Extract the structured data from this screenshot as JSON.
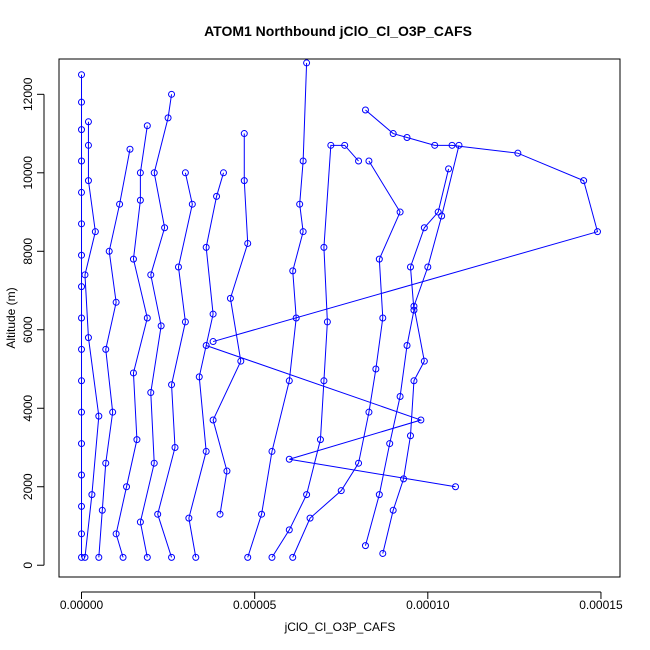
{
  "chart_data": {
    "type": "scatter",
    "title": "ATOM1 Northbound jClO_Cl_O3P_CAFS",
    "xlabel": "jClO_Cl_O3P_CAFS",
    "ylabel": "Altitude (m)",
    "xlim": [
      -6.5e-06,
      0.0001555
    ],
    "ylim": [
      -300,
      12900
    ],
    "x_ticks": [
      0,
      5e-05,
      0.0001,
      0.00015
    ],
    "x_tick_labels": [
      "0.00000",
      "0.00005",
      "0.00010",
      "0.00015"
    ],
    "y_ticks": [
      0,
      2000,
      4000,
      6000,
      8000,
      10000,
      12000
    ],
    "y_tick_labels": [
      "0",
      "2000",
      "4000",
      "6000",
      "8000",
      "10000",
      "12000"
    ],
    "style": {
      "color": "#0000ff",
      "marker": "open-circle",
      "lines": true,
      "grid": false,
      "legend": "none"
    },
    "series": [
      {
        "points": [
          [
            0.0,
            200
          ],
          [
            0.0,
            800
          ],
          [
            0.0,
            1500
          ],
          [
            0.0,
            2300
          ],
          [
            0.0,
            3100
          ],
          [
            0.0,
            3900
          ],
          [
            0.0,
            4700
          ],
          [
            0.0,
            5500
          ],
          [
            0.0,
            6300
          ],
          [
            0.0,
            7100
          ],
          [
            0.0,
            7900
          ],
          [
            0.0,
            8700
          ],
          [
            0.0,
            9500
          ],
          [
            0.0,
            10300
          ],
          [
            0.0,
            11100
          ],
          [
            0.0,
            11800
          ],
          [
            0.0,
            12500
          ]
        ]
      },
      {
        "points": [
          [
            1e-06,
            200
          ],
          [
            3e-06,
            1800
          ],
          [
            5e-06,
            3800
          ],
          [
            2e-06,
            5800
          ],
          [
            1e-06,
            7400
          ],
          [
            4e-06,
            8500
          ],
          [
            2e-06,
            9800
          ],
          [
            2e-06,
            10700
          ],
          [
            2e-06,
            11300
          ]
        ]
      },
      {
        "points": [
          [
            5e-06,
            200
          ],
          [
            6e-06,
            1400
          ],
          [
            7e-06,
            2600
          ],
          [
            9e-06,
            3900
          ],
          [
            7e-06,
            5500
          ],
          [
            1e-05,
            6700
          ],
          [
            8e-06,
            8000
          ],
          [
            1.1e-05,
            9200
          ],
          [
            1.4e-05,
            10600
          ]
        ]
      },
      {
        "points": [
          [
            1.2e-05,
            200
          ],
          [
            1e-05,
            800
          ],
          [
            1.3e-05,
            2000
          ],
          [
            1.6e-05,
            3200
          ],
          [
            1.5e-05,
            4900
          ],
          [
            1.9e-05,
            6300
          ],
          [
            1.5e-05,
            7800
          ],
          [
            1.7e-05,
            9300
          ],
          [
            1.7e-05,
            10000
          ],
          [
            1.9e-05,
            11200
          ]
        ]
      },
      {
        "points": [
          [
            1.9e-05,
            200
          ],
          [
            1.7e-05,
            1100
          ],
          [
            2.1e-05,
            2600
          ],
          [
            2e-05,
            4400
          ],
          [
            2.3e-05,
            6100
          ],
          [
            2e-05,
            7400
          ],
          [
            2.4e-05,
            8600
          ],
          [
            2.1e-05,
            10000
          ],
          [
            2.5e-05,
            11400
          ],
          [
            2.6e-05,
            12000
          ]
        ]
      },
      {
        "points": [
          [
            2.6e-05,
            200
          ],
          [
            2.2e-05,
            1300
          ],
          [
            2.7e-05,
            3000
          ],
          [
            2.6e-05,
            4600
          ],
          [
            3e-05,
            6200
          ],
          [
            2.8e-05,
            7600
          ],
          [
            3.2e-05,
            9200
          ],
          [
            3e-05,
            10000
          ]
        ]
      },
      {
        "points": [
          [
            3.3e-05,
            200
          ],
          [
            3.1e-05,
            1200
          ],
          [
            3.6e-05,
            2900
          ],
          [
            3.4e-05,
            4800
          ],
          [
            3.8e-05,
            6400
          ],
          [
            3.6e-05,
            8100
          ],
          [
            3.9e-05,
            9400
          ],
          [
            4.1e-05,
            10000
          ]
        ]
      },
      {
        "points": [
          [
            4e-05,
            1300
          ],
          [
            4.2e-05,
            2400
          ],
          [
            3.8e-05,
            3700
          ],
          [
            4.6e-05,
            5200
          ],
          [
            4.3e-05,
            6800
          ],
          [
            4.8e-05,
            8200
          ],
          [
            4.7e-05,
            9800
          ],
          [
            4.7e-05,
            11000
          ]
        ]
      },
      {
        "points": [
          [
            3.6e-05,
            5600
          ],
          [
            9.8e-05,
            3700
          ],
          [
            6e-05,
            2700
          ],
          [
            0.000108,
            2000
          ]
        ]
      },
      {
        "points": [
          [
            3.8e-05,
            5700
          ],
          [
            0.000149,
            8500
          ],
          [
            0.000145,
            9800
          ],
          [
            0.000126,
            10500
          ],
          [
            0.000107,
            10700
          ],
          [
            0.000102,
            10700
          ],
          [
            9.4e-05,
            10900
          ],
          [
            9e-05,
            11000
          ],
          [
            8.2e-05,
            11600
          ]
        ]
      },
      {
        "points": [
          [
            4.8e-05,
            200
          ],
          [
            5.2e-05,
            1300
          ],
          [
            5.5e-05,
            2900
          ],
          [
            6e-05,
            4700
          ],
          [
            6.2e-05,
            6300
          ],
          [
            6.1e-05,
            7500
          ],
          [
            6.4e-05,
            8500
          ],
          [
            6.3e-05,
            9200
          ],
          [
            6.4e-05,
            10300
          ],
          [
            6.5e-05,
            12800
          ]
        ]
      },
      {
        "points": [
          [
            5.5e-05,
            200
          ],
          [
            6e-05,
            900
          ],
          [
            6.5e-05,
            1800
          ],
          [
            6.9e-05,
            3200
          ],
          [
            7e-05,
            4700
          ],
          [
            7.1e-05,
            6200
          ],
          [
            7e-05,
            8100
          ],
          [
            7.2e-05,
            10700
          ],
          [
            7.6e-05,
            10700
          ],
          [
            8e-05,
            10300
          ]
        ]
      },
      {
        "points": [
          [
            6.1e-05,
            200
          ],
          [
            6.6e-05,
            1200
          ],
          [
            7.5e-05,
            1900
          ],
          [
            8e-05,
            2600
          ],
          [
            8.3e-05,
            3900
          ],
          [
            8.5e-05,
            5000
          ],
          [
            8.7e-05,
            6300
          ],
          [
            8.6e-05,
            7800
          ],
          [
            9.2e-05,
            9000
          ],
          [
            8.3e-05,
            10300
          ]
        ]
      },
      {
        "points": [
          [
            8.2e-05,
            500
          ],
          [
            8.6e-05,
            1800
          ],
          [
            8.9e-05,
            3100
          ],
          [
            9.2e-05,
            4300
          ],
          [
            9.4e-05,
            5600
          ],
          [
            9.6e-05,
            6500
          ],
          [
            9.5e-05,
            7600
          ],
          [
            9.9e-05,
            8600
          ],
          [
            0.000103,
            9000
          ],
          [
            0.000106,
            10100
          ]
        ]
      },
      {
        "points": [
          [
            8.7e-05,
            300
          ],
          [
            9e-05,
            1400
          ],
          [
            9.3e-05,
            2200
          ],
          [
            9.5e-05,
            3300
          ],
          [
            9.6e-05,
            4700
          ],
          [
            9.9e-05,
            5200
          ],
          [
            9.6e-05,
            6600
          ],
          [
            0.0001,
            7600
          ],
          [
            0.000104,
            8900
          ],
          [
            0.000109,
            10700
          ]
        ]
      }
    ]
  }
}
